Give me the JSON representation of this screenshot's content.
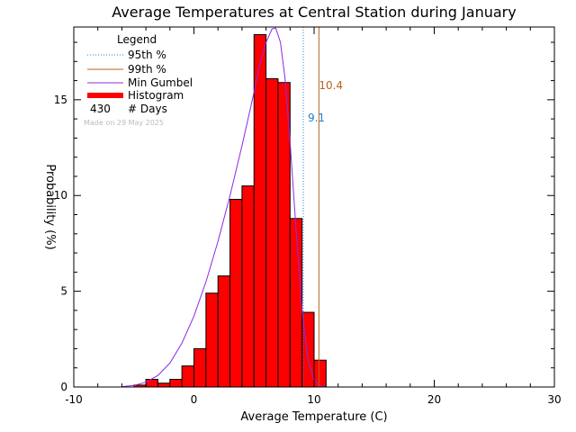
{
  "chart_data": {
    "type": "bar",
    "title": "Average Temperatures at Central Station during January",
    "xlabel": "Average Temperature (C)",
    "ylabel": "Probability (%)",
    "xlim": [
      -10,
      30
    ],
    "ylim": [
      0,
      18.8
    ],
    "x_ticks": [
      "-10",
      "0",
      "10",
      "20",
      "30"
    ],
    "y_ticks": [
      "0",
      "5",
      "10",
      "15"
    ],
    "x_tick_values": [
      -10,
      0,
      10,
      20,
      30
    ],
    "y_tick_values": [
      0,
      5,
      10,
      15
    ],
    "bin_width": 1,
    "bins": [
      {
        "start": -5,
        "value": 0.1
      },
      {
        "start": -4,
        "value": 0.4
      },
      {
        "start": -3,
        "value": 0.2
      },
      {
        "start": -2,
        "value": 0.4
      },
      {
        "start": -1,
        "value": 1.1
      },
      {
        "start": 0,
        "value": 2.0
      },
      {
        "start": 1,
        "value": 4.9
      },
      {
        "start": 2,
        "value": 5.8
      },
      {
        "start": 3,
        "value": 9.8
      },
      {
        "start": 4,
        "value": 10.5
      },
      {
        "start": 5,
        "value": 18.4
      },
      {
        "start": 6,
        "value": 16.1
      },
      {
        "start": 7,
        "value": 15.9
      },
      {
        "start": 8,
        "value": 8.8
      },
      {
        "start": 9,
        "value": 3.9
      },
      {
        "start": 10,
        "value": 1.4
      }
    ],
    "gumbel_curve": [
      [
        -6,
        0.02
      ],
      [
        -5,
        0.08
      ],
      [
        -4,
        0.25
      ],
      [
        -3,
        0.6
      ],
      [
        -2,
        1.25
      ],
      [
        -1,
        2.3
      ],
      [
        0,
        3.7
      ],
      [
        1,
        5.5
      ],
      [
        2,
        7.6
      ],
      [
        3,
        10.0
      ],
      [
        4,
        12.6
      ],
      [
        5,
        15.4
      ],
      [
        5.5,
        16.9
      ],
      [
        6,
        18.0
      ],
      [
        6.5,
        18.7
      ],
      [
        6.8,
        18.75
      ],
      [
        7.2,
        18.0
      ],
      [
        7.6,
        16.0
      ],
      [
        8,
        12.8
      ],
      [
        8.5,
        8.2
      ],
      [
        9,
        4.0
      ],
      [
        9.5,
        1.4
      ],
      [
        10,
        0.35
      ],
      [
        10.5,
        0.05
      ],
      [
        11,
        0.0
      ]
    ],
    "percentile_95": {
      "label": "95th %",
      "value": 9.1,
      "text": "9.1",
      "color": "#1f7fd0"
    },
    "percentile_99": {
      "label": "99th %",
      "value": 10.4,
      "text": "10.4",
      "color": "#b5651d"
    },
    "series_colors": {
      "histogram": "#ff0000",
      "gumbel": "#8a2be2"
    },
    "legend": {
      "title": "Legend",
      "placement": "top-left",
      "items": [
        {
          "label": "95th %",
          "style": "dotted",
          "color": "#1f7fd0"
        },
        {
          "label": "99th %",
          "style": "solid",
          "color": "#b5651d"
        },
        {
          "label": "Min Gumbel",
          "style": "solid",
          "color": "#8a2be2"
        },
        {
          "label": "Histogram",
          "style": "thick",
          "color": "#ff0000"
        }
      ],
      "count_value": "430",
      "count_label": "# Days"
    },
    "made_on": "Made on 29 May 2025"
  }
}
